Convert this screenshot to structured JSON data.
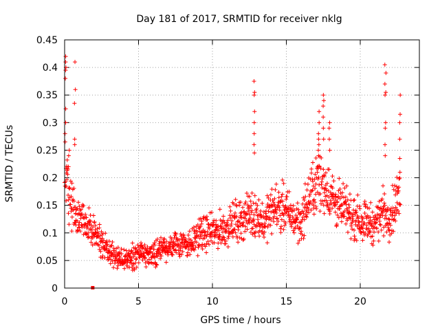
{
  "chart_data": {
    "type": "scatter",
    "title": "Day 181 of 2017, SRMTID for receiver nklg",
    "xlabel": "GPS time / hours",
    "ylabel": "SRMTID / TECUs",
    "xlim": [
      0,
      24
    ],
    "ylim": [
      0,
      0.45
    ],
    "xticks": [
      0,
      5,
      10,
      15,
      20
    ],
    "yticks": [
      0,
      0.05,
      0.1,
      0.15,
      0.2,
      0.25,
      0.3,
      0.35,
      0.4,
      0.45
    ],
    "xtick_labels": [
      "0",
      "5",
      "10",
      "15",
      "20"
    ],
    "ytick_labels": [
      "0",
      "0.05",
      "0.1",
      "0.15",
      "0.2",
      "0.25",
      "0.3",
      "0.35",
      "0.4",
      "0.45"
    ],
    "grid": true,
    "marker": "+",
    "colors": {
      "points": "#ff0000",
      "grid": "#a0a0a0",
      "axis": "#000000"
    },
    "profile": [
      [
        0.0,
        0.19
      ],
      [
        0.1,
        0.2
      ],
      [
        0.3,
        0.17
      ],
      [
        0.5,
        0.15
      ],
      [
        0.8,
        0.13
      ],
      [
        1.0,
        0.125
      ],
      [
        1.5,
        0.12
      ],
      [
        2.0,
        0.1
      ],
      [
        2.5,
        0.08
      ],
      [
        3.0,
        0.07
      ],
      [
        3.5,
        0.055
      ],
      [
        4.0,
        0.05
      ],
      [
        4.5,
        0.055
      ],
      [
        5.0,
        0.06
      ],
      [
        5.5,
        0.06
      ],
      [
        6.0,
        0.065
      ],
      [
        6.5,
        0.07
      ],
      [
        7.0,
        0.075
      ],
      [
        7.5,
        0.08
      ],
      [
        8.0,
        0.085
      ],
      [
        8.5,
        0.08
      ],
      [
        9.0,
        0.095
      ],
      [
        9.5,
        0.1
      ],
      [
        10.0,
        0.1
      ],
      [
        10.5,
        0.105
      ],
      [
        11.0,
        0.11
      ],
      [
        11.5,
        0.12
      ],
      [
        12.0,
        0.125
      ],
      [
        12.5,
        0.135
      ],
      [
        13.0,
        0.13
      ],
      [
        13.5,
        0.12
      ],
      [
        14.0,
        0.14
      ],
      [
        14.5,
        0.15
      ],
      [
        15.0,
        0.14
      ],
      [
        15.5,
        0.125
      ],
      [
        16.0,
        0.12
      ],
      [
        16.5,
        0.16
      ],
      [
        17.0,
        0.19
      ],
      [
        17.5,
        0.19
      ],
      [
        18.0,
        0.17
      ],
      [
        18.5,
        0.15
      ],
      [
        19.0,
        0.14
      ],
      [
        19.5,
        0.13
      ],
      [
        20.0,
        0.125
      ],
      [
        20.5,
        0.12
      ],
      [
        21.0,
        0.115
      ],
      [
        21.5,
        0.14
      ],
      [
        22.0,
        0.13
      ],
      [
        22.5,
        0.16
      ],
      [
        22.7,
        0.17
      ]
    ],
    "spikes": [
      {
        "x": 0.05,
        "y": [
          0.42,
          0.41,
          0.4,
          0.395,
          0.38,
          0.325,
          0.3,
          0.28,
          0.265
        ]
      },
      {
        "x": 0.3,
        "y": [
          0.25,
          0.24,
          0.22
        ]
      },
      {
        "x": 0.7,
        "y": [
          0.41,
          0.36,
          0.335,
          0.27,
          0.26
        ]
      },
      {
        "x": 12.85,
        "y": [
          0.375,
          0.355,
          0.35,
          0.32,
          0.3,
          0.28,
          0.26,
          0.245
        ]
      },
      {
        "x": 17.2,
        "y": [
          0.32,
          0.3,
          0.28,
          0.27,
          0.26,
          0.25,
          0.24
        ]
      },
      {
        "x": 17.5,
        "y": [
          0.35,
          0.34,
          0.33,
          0.31,
          0.29,
          0.27
        ]
      },
      {
        "x": 17.9,
        "y": [
          0.3,
          0.29,
          0.27,
          0.25
        ]
      },
      {
        "x": 21.7,
        "y": [
          0.405,
          0.39,
          0.37,
          0.355,
          0.35,
          0.3,
          0.29,
          0.26,
          0.24
        ]
      },
      {
        "x": 22.7,
        "y": [
          0.35,
          0.315,
          0.3,
          0.27,
          0.235,
          0.21
        ]
      }
    ],
    "outlier_square": {
      "x": 1.9,
      "y": 0.0
    }
  }
}
